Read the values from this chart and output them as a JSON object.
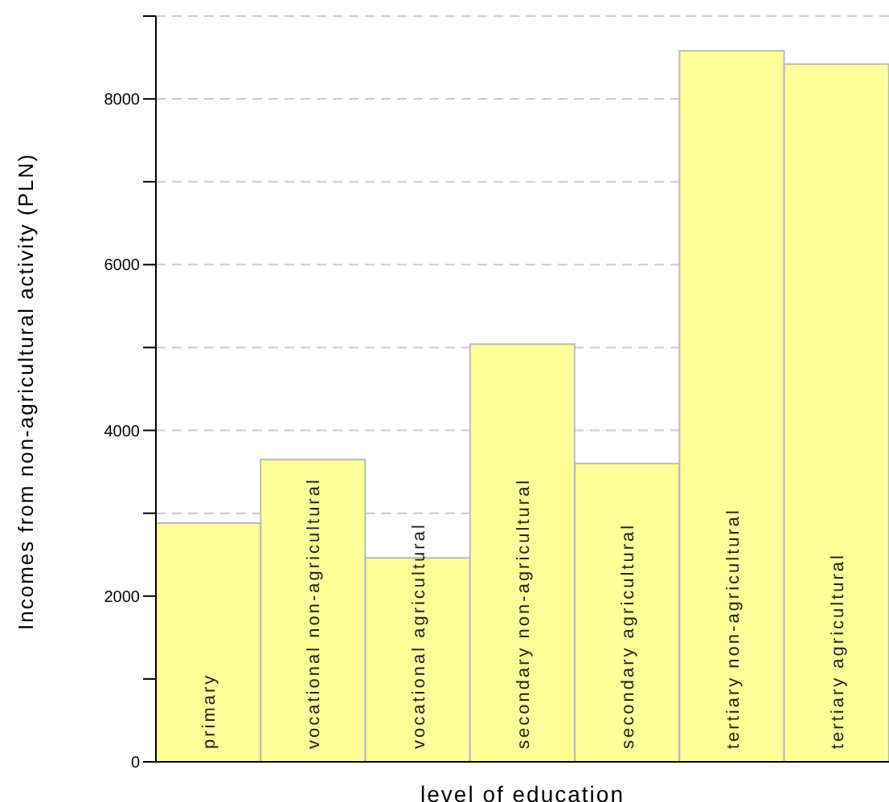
{
  "chart_data": {
    "type": "bar",
    "xlabel": "level of education",
    "ylabel": "Incomes from non-agricultural activity (PLN)",
    "categories": [
      "primary",
      "vocational non-agricultural",
      "vocational agricultural",
      "secondary non-agricultural",
      "secondary agricultural",
      "tertiary non-agricultural",
      "tertiary agricultural"
    ],
    "values": [
      2880,
      3650,
      2460,
      5040,
      3600,
      8580,
      8420
    ],
    "color": "#ffff99",
    "ylim": [
      0,
      9000
    ],
    "yticks": [
      0,
      {
        "value": 1000,
        "label": null
      },
      2000,
      {
        "value": 3000,
        "label": null
      },
      4000,
      {
        "value": 5000,
        "label": null
      },
      6000,
      {
        "value": 7000,
        "label": null
      },
      8000,
      {
        "value": 9000,
        "label": null
      }
    ],
    "grid": "y",
    "legend": false
  }
}
